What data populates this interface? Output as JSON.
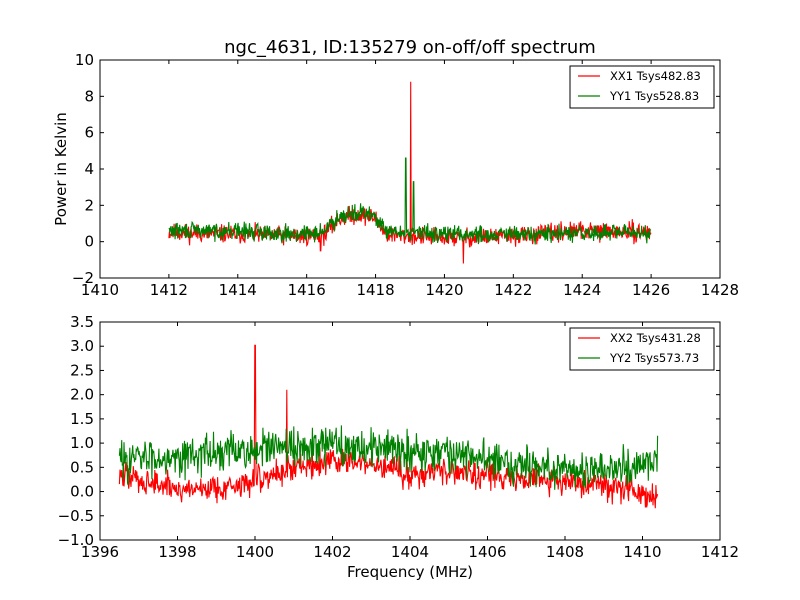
{
  "figure_title": "ngc_4631, ID:135279 on-off/off spectrum",
  "chart_data": [
    {
      "type": "line",
      "title": "ngc_4631, ID:135279 on-off/off spectrum",
      "xlabel": "",
      "ylabel": "Power in Kelvin",
      "xlim": [
        1410,
        1428
      ],
      "ylim": [
        -2,
        10
      ],
      "xticks": [
        1410,
        1412,
        1414,
        1416,
        1418,
        1420,
        1422,
        1424,
        1426,
        1428
      ],
      "yticks": [
        -2,
        0,
        2,
        4,
        6,
        8,
        10
      ],
      "xtick_labels": [
        "1410",
        "1412",
        "1414",
        "1416",
        "1418",
        "1420",
        "1422",
        "1424",
        "1426",
        "1428"
      ],
      "ytick_labels": [
        "−2",
        "0",
        "2",
        "4",
        "6",
        "8",
        "10"
      ],
      "grid": false,
      "legend_placement": "top-right",
      "series": [
        {
          "name": "XX1 Tsys482.83",
          "color": "#ff0000",
          "baseline": [
            [
              1412,
              0.5
            ],
            [
              1416,
              0.3
            ],
            [
              1416.5,
              0.4
            ],
            [
              1417,
              1.3
            ],
            [
              1417.5,
              1.5
            ],
            [
              1418,
              1.3
            ],
            [
              1418.3,
              0.4
            ],
            [
              1419,
              0.3
            ],
            [
              1420.5,
              0.2
            ],
            [
              1422,
              0.3
            ],
            [
              1424,
              0.6
            ],
            [
              1426,
              0.5
            ]
          ],
          "noise": 0.35,
          "seed": 11,
          "spikes": [
            [
              1419.02,
              8.8
            ],
            [
              1420.55,
              -1.2
            ],
            [
              1416.4,
              -0.5
            ]
          ]
        },
        {
          "name": "YY1 Tsys528.83",
          "color": "#008000",
          "baseline": [
            [
              1412,
              0.6
            ],
            [
              1414,
              0.6
            ],
            [
              1416,
              0.4
            ],
            [
              1416.5,
              0.6
            ],
            [
              1417,
              1.5
            ],
            [
              1417.5,
              1.6
            ],
            [
              1418,
              1.4
            ],
            [
              1418.3,
              0.5
            ],
            [
              1419,
              0.5
            ],
            [
              1421,
              0.4
            ],
            [
              1423,
              0.4
            ],
            [
              1425,
              0.5
            ],
            [
              1426,
              0.5
            ]
          ],
          "noise": 0.33,
          "seed": 29,
          "spikes": [
            [
              1418.88,
              4.6
            ],
            [
              1419.1,
              3.3
            ]
          ]
        }
      ]
    },
    {
      "type": "line",
      "title": "",
      "xlabel": "Frequency (MHz)",
      "ylabel": "",
      "xlim": [
        1396,
        1412
      ],
      "ylim": [
        -1,
        3.5
      ],
      "xticks": [
        1396,
        1398,
        1400,
        1402,
        1404,
        1406,
        1408,
        1410,
        1412
      ],
      "yticks": [
        -1,
        -0.5,
        0,
        0.5,
        1,
        1.5,
        2,
        2.5,
        3,
        3.5
      ],
      "xtick_labels": [
        "1396",
        "1398",
        "1400",
        "1402",
        "1404",
        "1406",
        "1408",
        "1410",
        "1412"
      ],
      "ytick_labels": [
        "−1.0",
        "−0.5",
        "0.0",
        "0.5",
        "1.0",
        "1.5",
        "2.0",
        "2.5",
        "3.0",
        "3.5"
      ],
      "grid": false,
      "legend_placement": "top-right",
      "series": [
        {
          "name": "XX2 Tsys431.28",
          "color": "#ff0000",
          "baseline": [
            [
              1396.5,
              0.35
            ],
            [
              1398,
              0.05
            ],
            [
              1399.5,
              0.1
            ],
            [
              1401,
              0.5
            ],
            [
              1402,
              0.65
            ],
            [
              1403,
              0.55
            ],
            [
              1404,
              0.35
            ],
            [
              1405,
              0.45
            ],
            [
              1406.5,
              0.3
            ],
            [
              1408,
              0.2
            ],
            [
              1409.5,
              0.1
            ],
            [
              1410.4,
              -0.1
            ]
          ],
          "noise": 0.2,
          "seed": 47,
          "spikes": [
            [
              1400.0,
              3.02
            ],
            [
              1400.82,
              2.1
            ]
          ]
        },
        {
          "name": "YY2 Tsys573.73",
          "color": "#008000",
          "baseline": [
            [
              1396.5,
              0.65
            ],
            [
              1398,
              0.75
            ],
            [
              1400,
              0.85
            ],
            [
              1402,
              0.95
            ],
            [
              1403.5,
              0.9
            ],
            [
              1405,
              0.8
            ],
            [
              1406.5,
              0.6
            ],
            [
              1408,
              0.45
            ],
            [
              1409.5,
              0.5
            ],
            [
              1410.4,
              0.6
            ]
          ],
          "noise": 0.28,
          "seed": 83,
          "spikes": [
            [
              1410.4,
              1.15
            ]
          ]
        }
      ]
    }
  ]
}
